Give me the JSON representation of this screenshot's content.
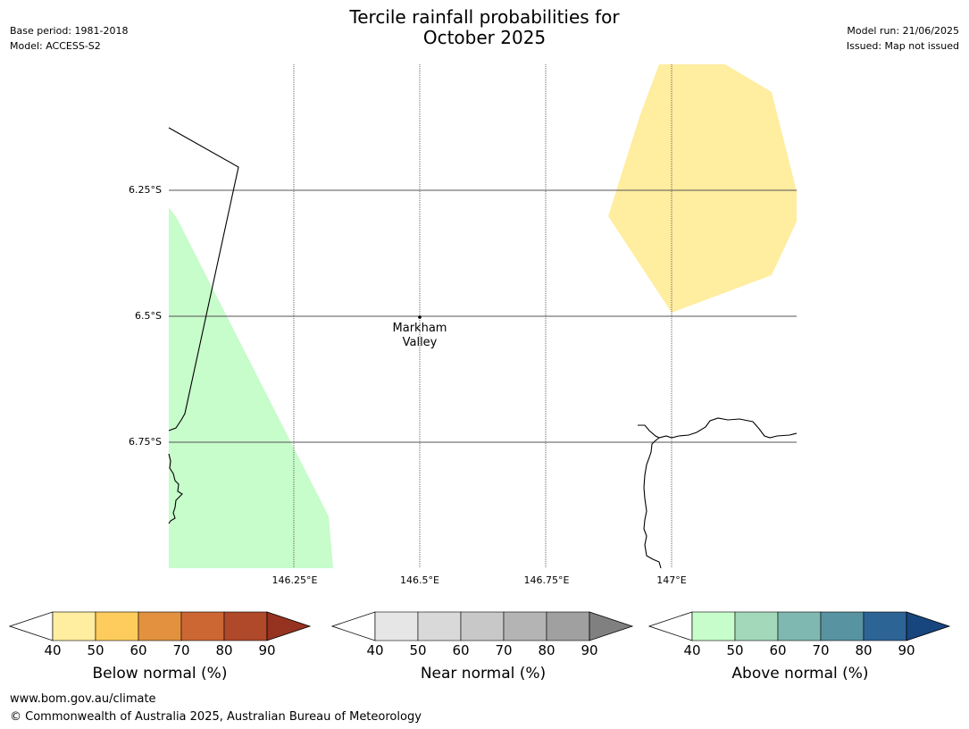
{
  "title_line1": "Tercile rainfall probabilities for",
  "title_line2": "October 2025",
  "base_period": "Base period: 1981-2018",
  "model": "Model: ACCESS-S2",
  "model_run": "Model run: 21/06/2025",
  "issued": "Issued: Map not issued",
  "lat_labels": [
    "6.25°S",
    "6.5°S",
    "6.75°S"
  ],
  "lon_labels": [
    "146.25°E",
    "146.5°E",
    "146.75°E",
    "147°E"
  ],
  "place": {
    "line1": "Markham",
    "line2": "Valley"
  },
  "colorbars": [
    {
      "title": "Below normal (%)",
      "ticks": [
        "40",
        "50",
        "60",
        "70",
        "80",
        "90"
      ],
      "colors": [
        "#ffeda0",
        "#fecc5c",
        "#e3913f",
        "#cc6633",
        "#b0482a"
      ],
      "extend": "#963220"
    },
    {
      "title": "Near normal (%)",
      "ticks": [
        "40",
        "50",
        "60",
        "70",
        "80",
        "90"
      ],
      "colors": [
        "#e6e6e6",
        "#d9d9d9",
        "#c8c8c8",
        "#b4b4b4",
        "#a0a0a0"
      ],
      "extend": "#808080"
    },
    {
      "title": "Above normal (%)",
      "ticks": [
        "40",
        "50",
        "60",
        "70",
        "80",
        "90"
      ],
      "colors": [
        "#c7fccb",
        "#a3d8bb",
        "#7fb8b0",
        "#5893a1",
        "#2d6496"
      ],
      "extend": "#17467e"
    }
  ],
  "footer_url": "www.bom.gov.au/climate",
  "footer_copyright": "© Commonwealth of Australia 2025, Australian Bureau of Meteorology"
}
